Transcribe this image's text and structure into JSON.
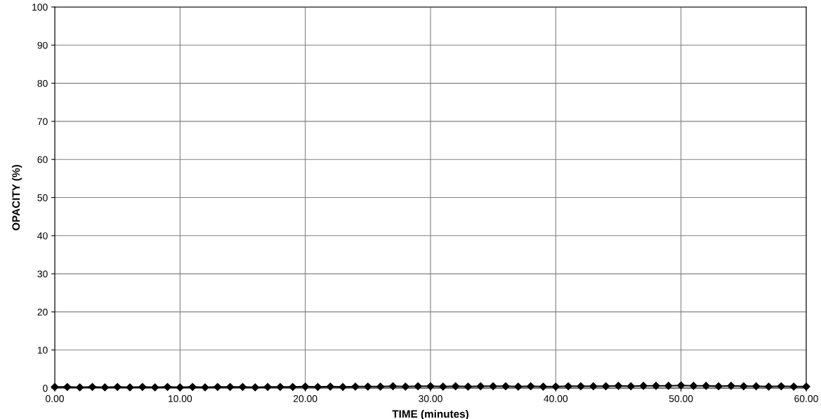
{
  "chart_data": {
    "type": "line",
    "xlabel": "TIME (minutes)",
    "ylabel": "OPACITY (%)",
    "x": [
      0,
      1,
      2,
      3,
      4,
      5,
      6,
      7,
      8,
      9,
      10,
      11,
      12,
      13,
      14,
      15,
      16,
      17,
      18,
      19,
      20,
      21,
      22,
      23,
      24,
      25,
      26,
      27,
      28,
      29,
      30,
      31,
      32,
      33,
      34,
      35,
      36,
      37,
      38,
      39,
      40,
      41,
      42,
      43,
      44,
      45,
      46,
      47,
      48,
      49,
      50,
      51,
      52,
      53,
      54,
      55,
      56,
      57,
      58,
      59,
      60
    ],
    "series": [
      {
        "color": "#000000",
        "values": [
          0.3,
          0.3,
          0.2,
          0.3,
          0.2,
          0.3,
          0.2,
          0.3,
          0.2,
          0.3,
          0.2,
          0.3,
          0.2,
          0.3,
          0.3,
          0.3,
          0.2,
          0.3,
          0.3,
          0.3,
          0.4,
          0.3,
          0.4,
          0.3,
          0.4,
          0.4,
          0.4,
          0.5,
          0.4,
          0.5,
          0.5,
          0.4,
          0.5,
          0.4,
          0.5,
          0.5,
          0.5,
          0.4,
          0.5,
          0.4,
          0.4,
          0.5,
          0.5,
          0.5,
          0.5,
          0.6,
          0.5,
          0.6,
          0.6,
          0.6,
          0.7,
          0.6,
          0.6,
          0.5,
          0.6,
          0.5,
          0.5,
          0.4,
          0.5,
          0.4,
          0.4
        ]
      }
    ],
    "xlim": [
      0,
      60
    ],
    "ylim": [
      0,
      100
    ],
    "xticks": [
      {
        "value": 0,
        "label": "0.00"
      },
      {
        "value": 10,
        "label": "10.00"
      },
      {
        "value": 20,
        "label": "20.00"
      },
      {
        "value": 30,
        "label": "30.00"
      },
      {
        "value": 40,
        "label": "40.00"
      },
      {
        "value": 50,
        "label": "50.00"
      },
      {
        "value": 60,
        "label": "60.00"
      }
    ],
    "yticks": [
      0,
      10,
      20,
      30,
      40,
      50,
      60,
      70,
      80,
      90,
      100
    ],
    "grid": true,
    "marker": "diamond",
    "line_style": "solid"
  }
}
